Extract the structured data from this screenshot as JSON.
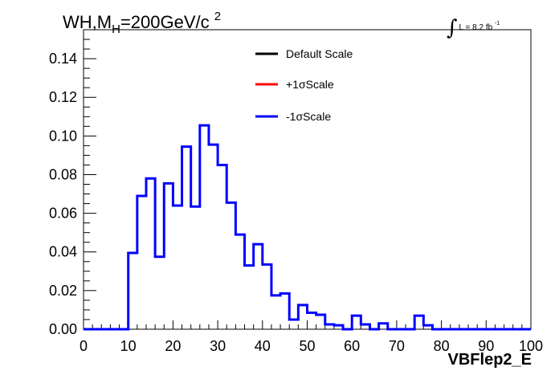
{
  "header": {
    "title_main": "WH,M",
    "title_sub": "H",
    "title_rest": "=200GeV/c",
    "title_sup": "2",
    "lumi_label": "L = 8.2 fb",
    "lumi_sup": "-1"
  },
  "chart_data": {
    "type": "line",
    "xlabel": "VBFlep2_E",
    "xlim": [
      0,
      100
    ],
    "ylim": [
      0,
      0.155
    ],
    "x_ticks": [
      "0",
      "10",
      "20",
      "30",
      "40",
      "50",
      "60",
      "70",
      "80",
      "90",
      "100"
    ],
    "y_ticks": [
      "0.00",
      "0.02",
      "0.04",
      "0.06",
      "0.08",
      "0.10",
      "0.12",
      "0.14"
    ],
    "bin_edges": [
      0,
      2,
      4,
      6,
      8,
      10,
      12,
      14,
      16,
      18,
      20,
      22,
      24,
      26,
      28,
      30,
      32,
      34,
      36,
      38,
      40,
      42,
      44,
      46,
      48,
      50,
      52,
      54,
      56,
      58,
      60,
      62,
      64,
      66,
      68,
      70,
      72,
      74,
      76,
      78,
      80,
      82,
      84,
      86,
      88,
      90,
      92,
      94,
      96,
      98,
      100
    ],
    "legend": {
      "placement": "top-right",
      "entries": [
        {
          "label": "Default Scale",
          "color": "#000000"
        },
        {
          "label": "+1σScale",
          "color": "#ff0000"
        },
        {
          "label": "-1σScale",
          "color": "#0000ff"
        }
      ]
    },
    "series": [
      {
        "name": "-1σScale",
        "color": "#0000ff",
        "values": [
          0,
          0,
          0,
          0,
          0,
          0.0395,
          0.069,
          0.078,
          0.0375,
          0.0755,
          0.064,
          0.0945,
          0.0635,
          0.1055,
          0.0955,
          0.085,
          0.0655,
          0.049,
          0.033,
          0.044,
          0.0335,
          0.0175,
          0.0185,
          0.005,
          0.0125,
          0.0085,
          0.0075,
          0.0025,
          0.002,
          0,
          0.007,
          0.0025,
          0,
          0.003,
          0,
          0,
          0,
          0.007,
          0.002,
          0,
          0,
          0,
          0,
          0,
          0,
          0,
          0,
          0,
          0,
          0
        ]
      }
    ]
  }
}
